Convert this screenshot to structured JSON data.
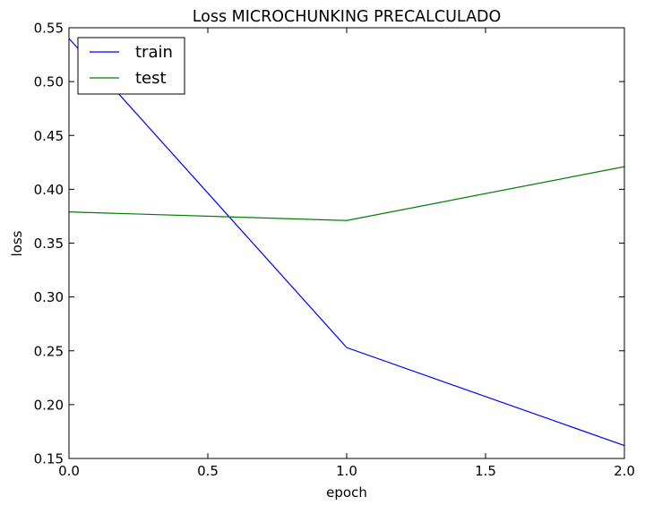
{
  "chart_data": {
    "type": "line",
    "title": "Loss MICROCHUNKING PRECALCULADO",
    "xlabel": "epoch",
    "ylabel": "loss",
    "xlim": [
      0.0,
      2.0
    ],
    "ylim": [
      0.15,
      0.55
    ],
    "x_ticks": [
      "0.0",
      "0.5",
      "1.0",
      "1.5",
      "2.0"
    ],
    "y_ticks": [
      "0.15",
      "0.20",
      "0.25",
      "0.30",
      "0.35",
      "0.40",
      "0.45",
      "0.50",
      "0.55"
    ],
    "grid": false,
    "legend_position": "top-left",
    "x": [
      0,
      1,
      2
    ],
    "series": [
      {
        "name": "train",
        "color": "#0000ff",
        "values": [
          0.54,
          0.253,
          0.162
        ]
      },
      {
        "name": "test",
        "color": "#008000",
        "values": [
          0.379,
          0.371,
          0.421
        ]
      }
    ]
  }
}
